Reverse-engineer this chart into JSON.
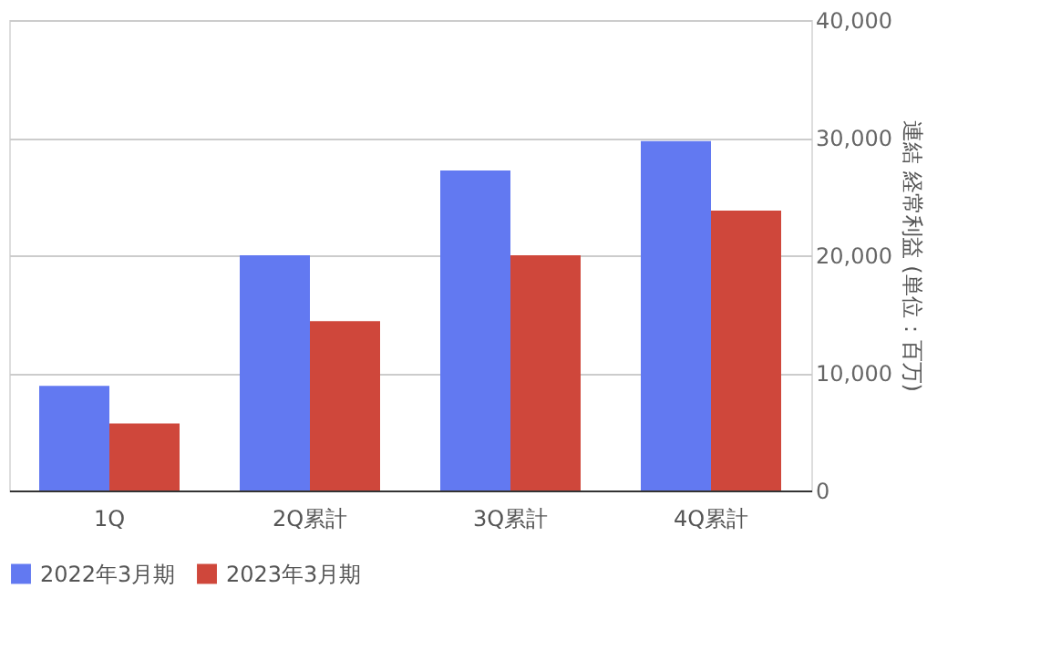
{
  "chart_data": {
    "type": "bar",
    "categories": [
      "1Q",
      "2Q累計",
      "3Q累計",
      "4Q累計"
    ],
    "series": [
      {
        "name": "2022年3月期",
        "color": "#6279f1",
        "values": [
          8900,
          20000,
          27200,
          29700
        ]
      },
      {
        "name": "2023年3月期",
        "color": "#cf473b",
        "values": [
          5700,
          14400,
          20000,
          23800
        ]
      }
    ],
    "ylabel": "連結 経常利益 (単位：百万)",
    "ylim": [
      0,
      40000
    ],
    "yticks": [
      0,
      {
        "value": 10000,
        "label": "10,000"
      },
      {
        "value": 20000,
        "label": "20,000"
      },
      {
        "value": 30000,
        "label": "30,000"
      },
      {
        "value": 40000,
        "label": "40,000"
      }
    ],
    "grid": "y",
    "legend": "bottom"
  }
}
